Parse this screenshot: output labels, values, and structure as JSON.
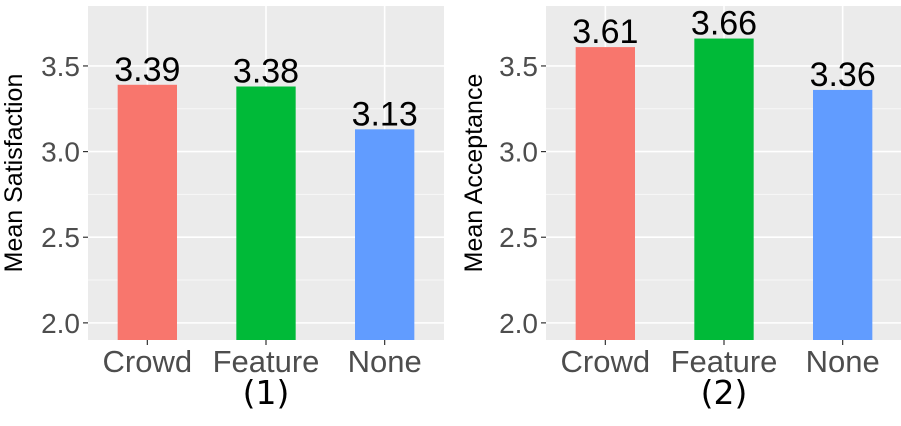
{
  "chart_data": [
    {
      "type": "bar",
      "panel_label": "(1)",
      "ylabel": "Mean Satisfaction",
      "xlabel": "",
      "categories": [
        "Crowd",
        "Feature",
        "None"
      ],
      "values": [
        3.39,
        3.38,
        3.13
      ],
      "value_labels": [
        "3.39",
        "3.38",
        "3.13"
      ],
      "colors": [
        "#F8766D",
        "#00BA38",
        "#619CFF"
      ],
      "ylim": [
        1.9,
        3.85
      ],
      "yticks": [
        2.0,
        2.5,
        3.0,
        3.5
      ],
      "ytick_labels": [
        "2.0",
        "2.5",
        "3.0",
        "3.5"
      ],
      "grid": true,
      "legend": "none"
    },
    {
      "type": "bar",
      "panel_label": "(2)",
      "ylabel": "Mean Acceptance",
      "xlabel": "",
      "categories": [
        "Crowd",
        "Feature",
        "None"
      ],
      "values": [
        3.61,
        3.66,
        3.36
      ],
      "value_labels": [
        "3.61",
        "3.66",
        "3.36"
      ],
      "colors": [
        "#F8766D",
        "#00BA38",
        "#619CFF"
      ],
      "ylim": [
        1.9,
        3.85
      ],
      "yticks": [
        2.0,
        2.5,
        3.0,
        3.5
      ],
      "ytick_labels": [
        "2.0",
        "2.5",
        "3.0",
        "3.5"
      ],
      "grid": true,
      "legend": "none"
    }
  ]
}
